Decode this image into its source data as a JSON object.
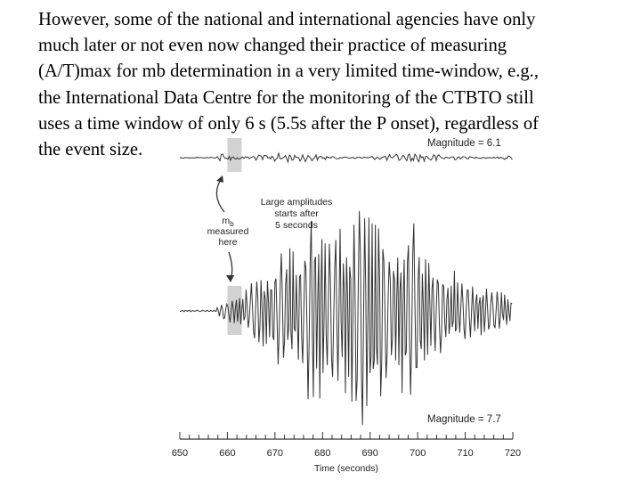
{
  "slide": {
    "text_lines": [
      "However, some of the national and international agencies have only",
      "much later or not even now changed their practice of measuring",
      "(A/T)max for mb determination in a very limited time-window, e.g.,",
      "the International Data Centre for the monitoring of the CTBTO still",
      "uses a time window of only 6 s (5.5s after the P onset), regardless of",
      "the event size."
    ]
  },
  "figure": {
    "top_magnitude": "Magnitude = 6.1",
    "bottom_magnitude": "Magnitude = 7.7",
    "annotation_lines": [
      "Large amplitudes",
      "starts after",
      "5 seconds"
    ],
    "mb_label": {
      "main": "m",
      "sub": "b",
      "line2": "measured",
      "line3": "here"
    },
    "axis_title": "Time (seconds)",
    "ticks": [
      "650",
      "660",
      "670",
      "680",
      "690",
      "700",
      "710",
      "720"
    ],
    "axis_range": [
      650,
      720
    ],
    "highlight_window_seconds": [
      660,
      663
    ],
    "highlight_color": "#d2d2d2"
  }
}
